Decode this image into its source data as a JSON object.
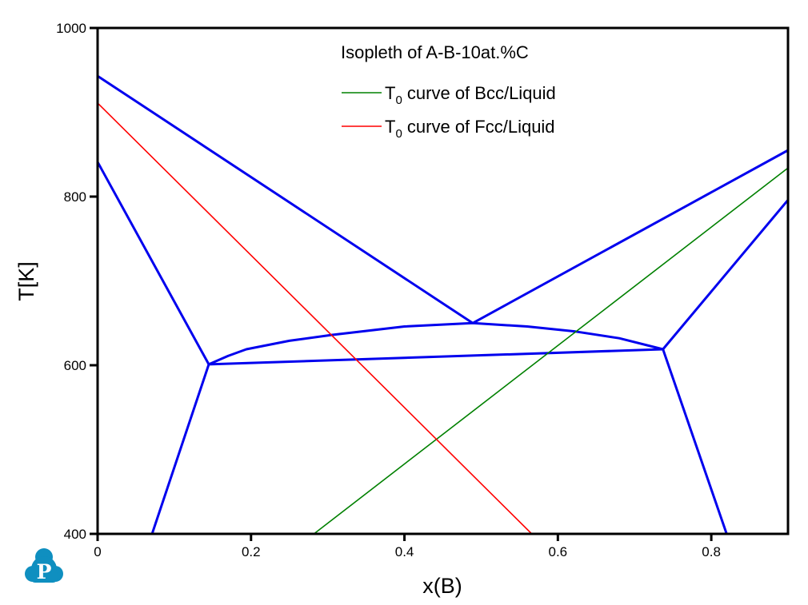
{
  "chart_data": {
    "type": "line",
    "title": "Isopleth of A-B-10at.%C",
    "xlabel": "x(B)",
    "ylabel": "T[K]",
    "xlim": [
      0,
      0.9
    ],
    "ylim": [
      400,
      1000
    ],
    "xticks": [
      "0",
      "0.2",
      "0.4",
      "0.6",
      "0.8"
    ],
    "xtick_values": [
      0,
      0.2,
      0.4,
      0.6,
      0.8
    ],
    "yticks": [
      "400",
      "600",
      "800",
      "1000"
    ],
    "ytick_values": [
      400,
      600,
      800,
      1000
    ],
    "grid": false,
    "legend_position": "top-center",
    "phase_boundaries": {
      "color": "#0000ee",
      "lines": [
        {
          "name": "liquidus-left",
          "points": [
            [
              0,
              943
            ],
            [
              0.489,
              650
            ]
          ]
        },
        {
          "name": "liquidus-right",
          "points": [
            [
              0.489,
              650
            ],
            [
              0.9,
              855
            ]
          ]
        },
        {
          "name": "boundary-left-upper",
          "points": [
            [
              0,
              841
            ],
            [
              0.145,
              601
            ]
          ]
        },
        {
          "name": "boundary-left-lower",
          "points": [
            [
              0.071,
              400
            ],
            [
              0.145,
              601
            ]
          ]
        },
        {
          "name": "three-phase-lower",
          "points": [
            [
              0.145,
              601
            ],
            [
              0.737,
              619
            ]
          ]
        },
        {
          "name": "three-phase-upper-curve",
          "points": [
            [
              0.145,
              601
            ],
            [
              0.17,
              611
            ],
            [
              0.194,
              619
            ],
            [
              0.25,
              629
            ],
            [
              0.306,
              636
            ],
            [
              0.4,
              646
            ],
            [
              0.489,
              650
            ],
            [
              0.56,
              646
            ],
            [
              0.623,
              640
            ],
            [
              0.68,
              632
            ],
            [
              0.737,
              619
            ]
          ]
        },
        {
          "name": "boundary-right-upper",
          "points": [
            [
              0.737,
              619
            ],
            [
              0.9,
              796
            ]
          ]
        },
        {
          "name": "boundary-right-lower",
          "points": [
            [
              0.737,
              619
            ],
            [
              0.82,
              400
            ]
          ]
        }
      ]
    },
    "series": [
      {
        "name": "T0 curve of Bcc/Liquid",
        "label_main": "T",
        "label_sub": "0",
        "label_rest": " curve of Bcc/Liquid",
        "color": "#008000",
        "points": [
          [
            0.282,
            400
          ],
          [
            0.9,
            834
          ]
        ]
      },
      {
        "name": "T0 curve of Fcc/Liquid",
        "label_main": "T",
        "label_sub": "0",
        "label_rest": " curve of Fcc/Liquid",
        "color": "#ff0000",
        "points": [
          [
            0,
            911
          ],
          [
            0.566,
            400
          ]
        ]
      }
    ]
  },
  "logo": {
    "letter": "P",
    "color": "#0f8fc0"
  }
}
